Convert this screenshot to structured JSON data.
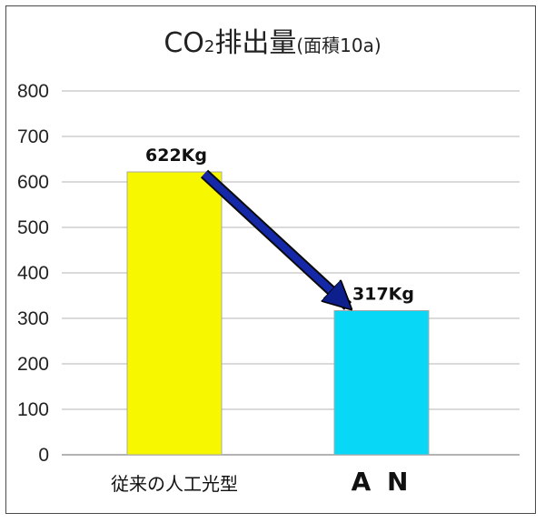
{
  "chart_data": {
    "type": "bar",
    "title": {
      "main": "CO",
      "subscript": "2",
      "rest": "排出量",
      "unit": "(面積10a)"
    },
    "categories": [
      "従来の人工光型",
      "A N"
    ],
    "values": [
      622,
      317
    ],
    "value_labels": [
      "622Kg",
      "317Kg"
    ],
    "colors": [
      "#f7f700",
      "#08d8f5"
    ],
    "arrow_color": "#1428a8",
    "ylim": [
      0,
      800
    ],
    "yticks": [
      "0",
      "100",
      "200",
      "300",
      "400",
      "500",
      "600",
      "700",
      "800"
    ],
    "grid": true,
    "legend": "none"
  }
}
